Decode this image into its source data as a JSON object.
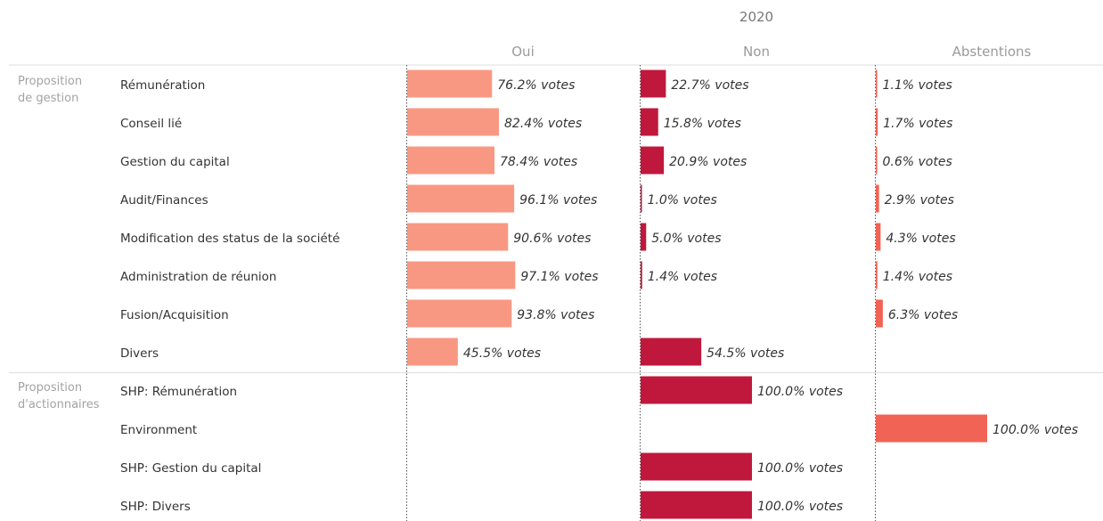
{
  "chart_data": {
    "type": "bar",
    "title": "2020",
    "value_suffix": "% votes",
    "columns": [
      "Oui",
      "Non",
      "Abstentions"
    ],
    "colors": {
      "Oui": "#f99882",
      "Non": "#c0183d",
      "Abstentions": "#f06355"
    },
    "groups": [
      {
        "label_lines": [
          "Proposition",
          "de gestion"
        ],
        "rows": [
          {
            "label": "Rémunération",
            "values": [
              76.2,
              22.7,
              1.1
            ]
          },
          {
            "label": "Conseil lié",
            "values": [
              82.4,
              15.8,
              1.7
            ]
          },
          {
            "label": "Gestion du capital",
            "values": [
              78.4,
              20.9,
              0.6
            ]
          },
          {
            "label": "Audit/Finances",
            "values": [
              96.1,
              1.0,
              2.9
            ]
          },
          {
            "label": "Modification des status de la société",
            "values": [
              90.6,
              5.0,
              4.3
            ]
          },
          {
            "label": "Administration de réunion",
            "values": [
              97.1,
              1.4,
              1.4
            ]
          },
          {
            "label": "Fusion/Acquisition",
            "values": [
              93.8,
              null,
              6.3
            ]
          },
          {
            "label": "Divers",
            "values": [
              45.5,
              54.5,
              null
            ]
          }
        ]
      },
      {
        "label_lines": [
          "Proposition",
          "d'actionnaires"
        ],
        "rows": [
          {
            "label": "SHP: Rémunération",
            "values": [
              null,
              100.0,
              null
            ]
          },
          {
            "label": "Environment",
            "values": [
              null,
              null,
              100.0
            ]
          },
          {
            "label": "SHP: Gestion du capital",
            "values": [
              null,
              100.0,
              null
            ]
          },
          {
            "label": "SHP: Divers",
            "values": [
              null,
              100.0,
              null
            ]
          }
        ]
      }
    ],
    "xlim": [
      0,
      100
    ]
  }
}
